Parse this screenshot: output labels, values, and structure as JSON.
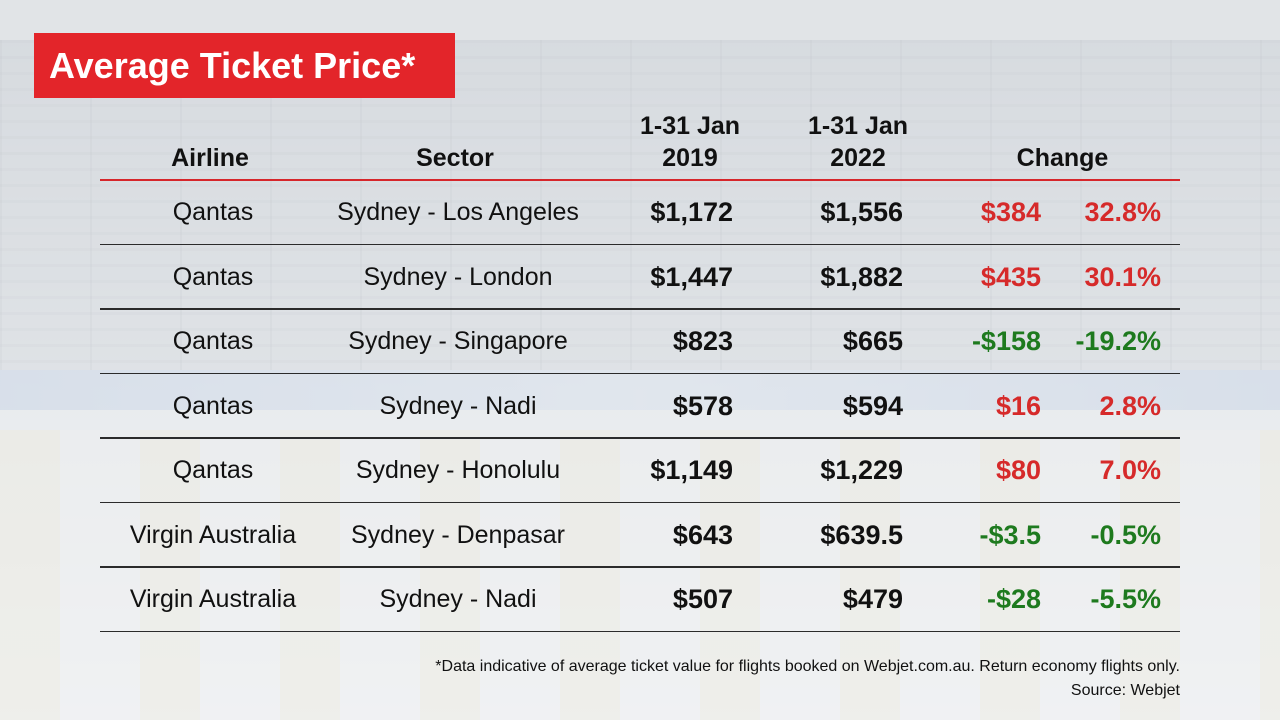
{
  "colors": {
    "title_bg": "#e3252a",
    "increase": "#d62a2a",
    "decrease": "#1e7a1e",
    "header_rule": "#d6262b"
  },
  "title": "Average Ticket Price*",
  "chart_data": {
    "type": "table",
    "columns": {
      "airline": "Airline",
      "sector": "Sector",
      "jan2019": [
        "1-31 Jan",
        "2019"
      ],
      "jan2022": [
        "1-31 Jan",
        "2022"
      ],
      "change": "Change"
    },
    "rows": [
      {
        "airline": "Qantas",
        "sector": "Sydney - Los Angeles",
        "jan2019": "$1,172",
        "jan2022": "$1,556",
        "change": "$384",
        "pct": "32.8%",
        "trend": "up"
      },
      {
        "airline": "Qantas",
        "sector": "Sydney - London",
        "jan2019": "$1,447",
        "jan2022": "$1,882",
        "change": "$435",
        "pct": "30.1%",
        "trend": "up"
      },
      {
        "airline": "Qantas",
        "sector": "Sydney - Singapore",
        "jan2019": "$823",
        "jan2022": "$665",
        "change": "-$158",
        "pct": "-19.2%",
        "trend": "down"
      },
      {
        "airline": "Qantas",
        "sector": "Sydney - Nadi",
        "jan2019": "$578",
        "jan2022": "$594",
        "change": "$16",
        "pct": "2.8%",
        "trend": "up"
      },
      {
        "airline": "Qantas",
        "sector": "Sydney - Honolulu",
        "jan2019": "$1,149",
        "jan2022": "$1,229",
        "change": "$80",
        "pct": "7.0%",
        "trend": "up"
      },
      {
        "airline": "Virgin Australia",
        "sector": "Sydney - Denpasar",
        "jan2019": "$643",
        "jan2022": "$639.5",
        "change": "-$3.5",
        "pct": "-0.5%",
        "trend": "down"
      },
      {
        "airline": "Virgin Australia",
        "sector": "Sydney - Nadi",
        "jan2019": "$507",
        "jan2022": "$479",
        "change": "-$28",
        "pct": "-5.5%",
        "trend": "down"
      }
    ]
  },
  "footnote": "*Data indicative of average ticket value for flights booked on Webjet.com.au. Return economy flights only.",
  "source": "Source: Webjet"
}
